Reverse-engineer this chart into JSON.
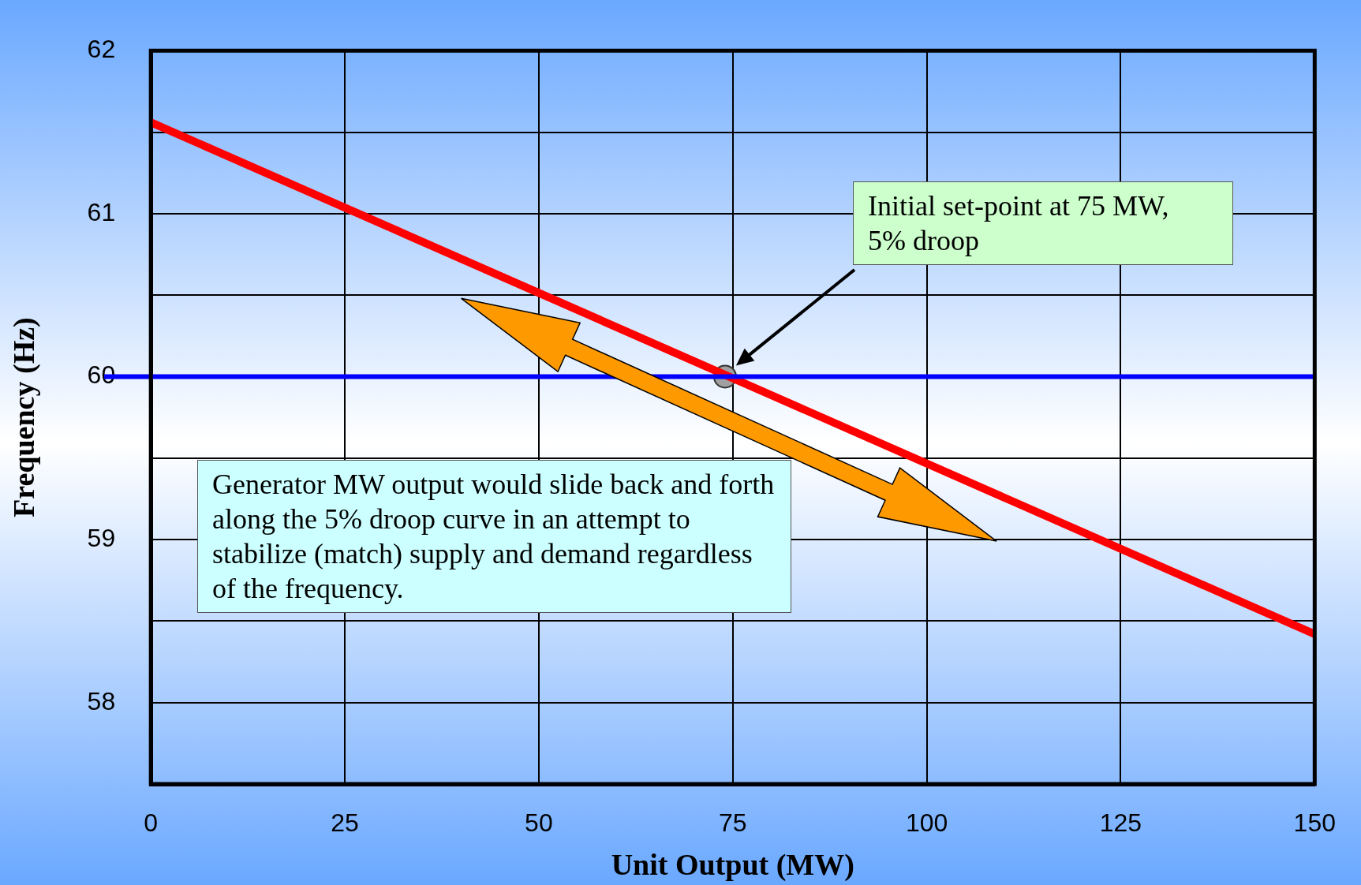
{
  "chart_data": {
    "type": "line",
    "xlabel": "Unit Output (MW)",
    "ylabel": "Frequency (Hz)",
    "xlim": [
      0,
      150
    ],
    "xticks": [
      0,
      25,
      50,
      75,
      100,
      125,
      150
    ],
    "ylim": [
      57.5,
      62
    ],
    "yticks": [
      {
        "value": 57.5,
        "label": null
      },
      58,
      {
        "value": 58.5,
        "label": null
      },
      59,
      {
        "value": 59.5,
        "label": null
      },
      60,
      {
        "value": 60.5,
        "label": null
      },
      61,
      {
        "value": 61.5,
        "label": null
      },
      62
    ],
    "grid": true,
    "series": [
      {
        "color": "#ff0000",
        "x": [
          0,
          150
        ],
        "values": [
          61.56,
          58.42
        ],
        "marker": "none"
      },
      {
        "type": "scatter",
        "color": "#a0a0a0",
        "x": [
          74
        ],
        "values": [
          60
        ],
        "marker": "circle"
      }
    ],
    "ref_lines": [
      {
        "axis": "y",
        "value": 60,
        "color": "#0000ff"
      }
    ],
    "annotations": [
      "Initial set-point at 75 MW, 5% droop",
      "Generator MW output would slide back and forth along the 5% droop curve in an attempt to stabilize (match) supply and demand regardless of the frequency."
    ]
  }
}
